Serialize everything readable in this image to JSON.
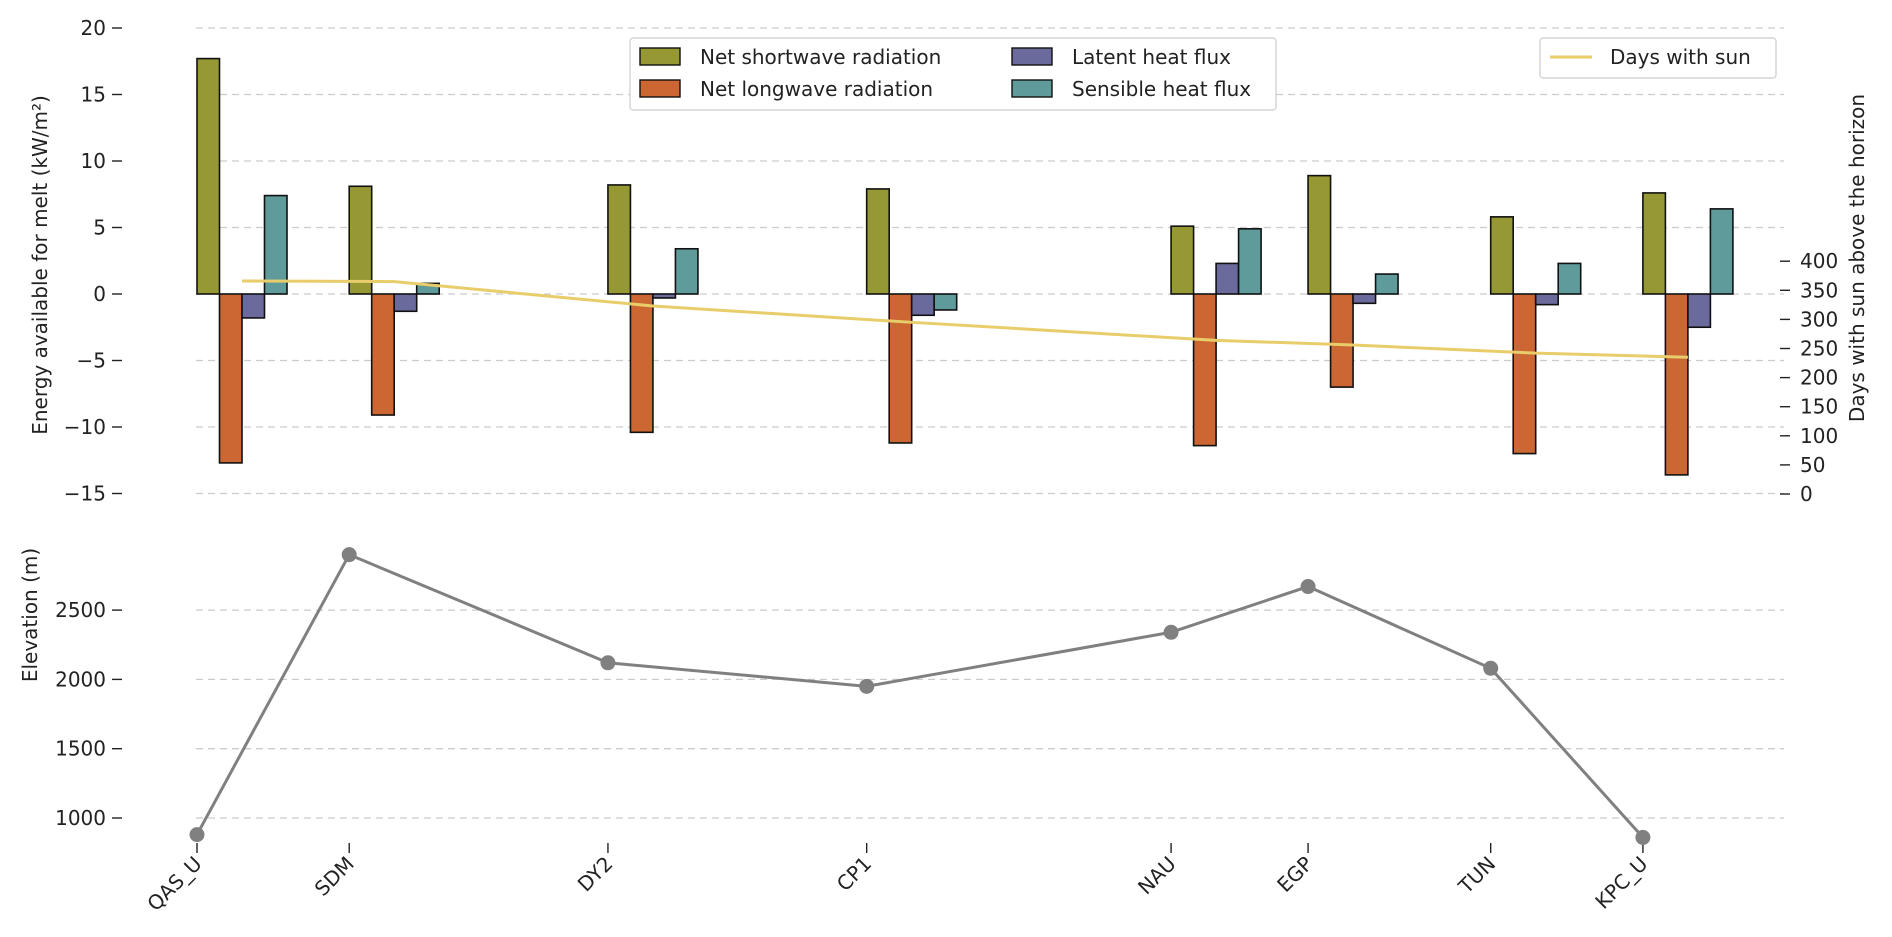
{
  "chart_data": [
    {
      "type": "bar",
      "categories": [
        "QAS_U",
        "SDM",
        "DY2",
        "CP1",
        "NAU",
        "EGP",
        "TUN",
        "KPC_U"
      ],
      "x_positions": [
        0,
        1,
        2.7,
        4.4,
        6.4,
        7.3,
        8.5,
        9.5
      ],
      "ylabel": "Energy available for melt (kW/m²)",
      "ylim": [
        -15,
        20
      ],
      "yticks": [
        -15,
        -10,
        -5,
        0,
        5,
        10,
        15,
        20
      ],
      "grid": true,
      "legend_placement": "top-center",
      "series": [
        {
          "name": "Net shortwave radiation",
          "color": "#969834",
          "values": [
            17.7,
            8.1,
            8.2,
            7.9,
            5.1,
            8.9,
            5.8,
            7.6
          ]
        },
        {
          "name": "Net longwave radiation",
          "color": "#cc6633",
          "values": [
            -12.7,
            -9.1,
            -10.4,
            -11.2,
            -11.4,
            -7.0,
            -12.0,
            -13.6
          ]
        },
        {
          "name": "Latent heat flux",
          "color": "#6a6a9c",
          "values": [
            -1.8,
            -1.3,
            -0.3,
            -1.6,
            2.3,
            -0.7,
            -0.8,
            -2.5
          ]
        },
        {
          "name": "Sensible heat flux",
          "color": "#5f9b9b",
          "values": [
            7.4,
            0.8,
            3.4,
            -1.2,
            4.9,
            1.5,
            2.3,
            6.4
          ]
        }
      ],
      "secondary_axis": {
        "type": "line",
        "ylabel": "Days with sun above the horizon",
        "ylim": [
          0,
          400
        ],
        "yticks": [
          0,
          50,
          100,
          150,
          200,
          250,
          300,
          350,
          400
        ],
        "series": [
          {
            "name": "Days with sun",
            "color": "#e8cd6a",
            "values": [
              366,
              365,
              323,
              295,
              264,
              256,
              242,
              235
            ]
          }
        ],
        "legend_placement": "top-right"
      }
    },
    {
      "type": "line",
      "categories": [
        "QAS_U",
        "SDM",
        "DY2",
        "CP1",
        "NAU",
        "EGP",
        "TUN",
        "KPC_U"
      ],
      "ylabel": "Elevation (m)",
      "ylim": [
        700,
        3000
      ],
      "yticks": [
        1000,
        1500,
        2000,
        2500
      ],
      "grid": true,
      "series": [
        {
          "color": "#808080",
          "values": [
            880,
            2900,
            2120,
            1950,
            2340,
            2670,
            2080,
            860
          ]
        }
      ]
    }
  ]
}
